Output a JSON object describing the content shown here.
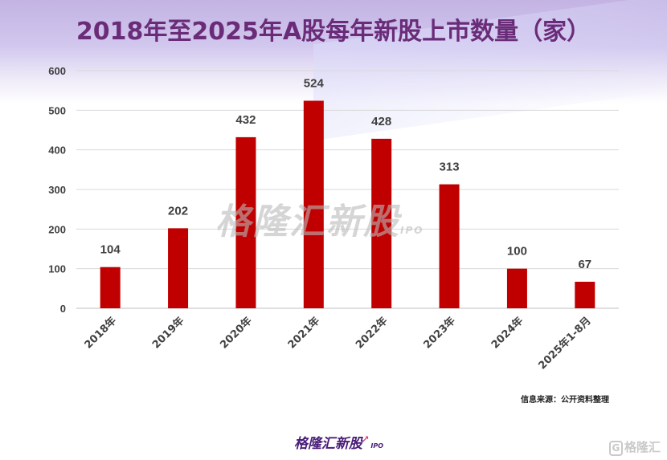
{
  "chart_data": {
    "type": "bar",
    "title": "2018年至2025年A股每年新股上市数量（家）",
    "categories": [
      "2018年",
      "2019年",
      "2020年",
      "2021年",
      "2022年",
      "2023年",
      "2024年",
      "2025年1-8月"
    ],
    "values": [
      104,
      202,
      432,
      524,
      428,
      313,
      100,
      67
    ],
    "ylim": [
      0,
      600
    ],
    "yticks": [
      0,
      100,
      200,
      300,
      400,
      500,
      600
    ],
    "grid": true,
    "bar_color": "#c00000",
    "xlabel": "",
    "ylabel": ""
  },
  "source": "信息来源：公开资料整理",
  "brand": {
    "name": "格隆汇新股",
    "suffix": "IPO"
  },
  "watermark": {
    "name": "格隆汇新股",
    "suffix": "IPO"
  },
  "corner_logo": {
    "glyph": "G",
    "name": "格隆汇"
  }
}
